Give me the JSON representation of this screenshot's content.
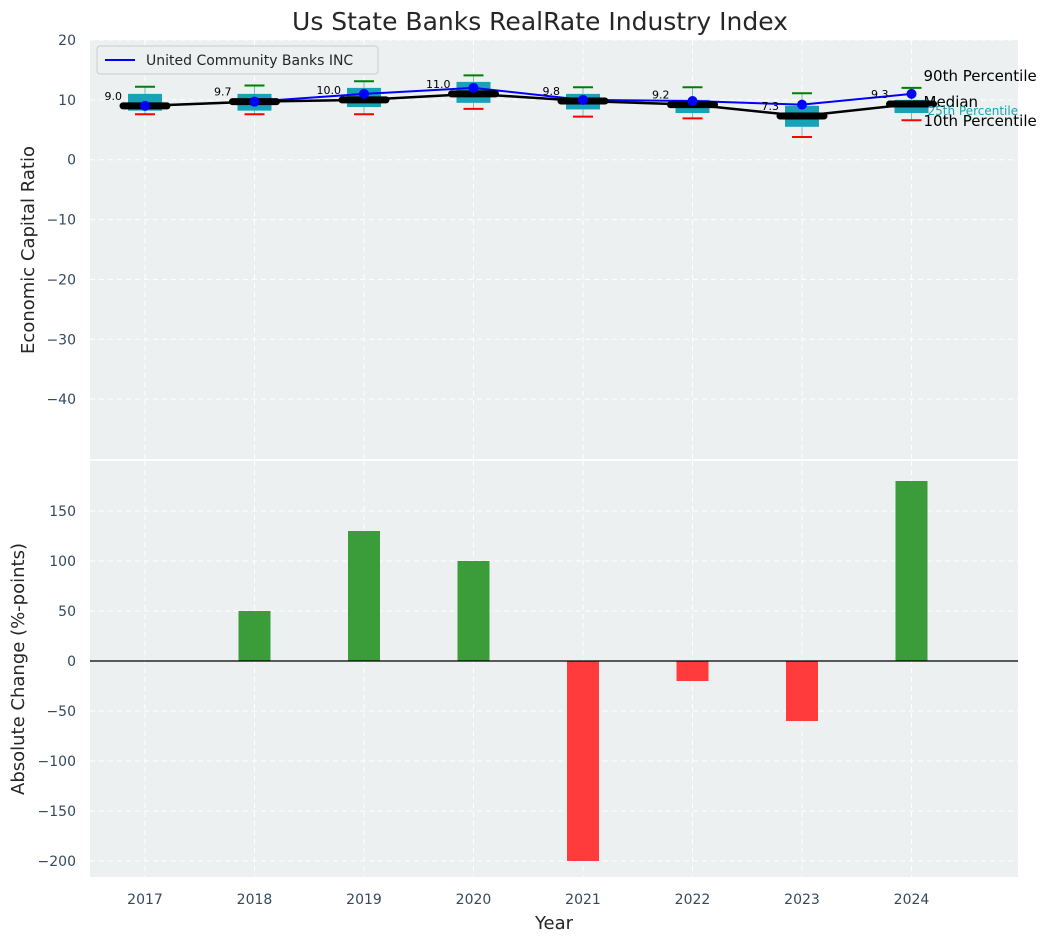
{
  "chart_data": [
    {
      "type": "box",
      "title": "Us State Banks RealRate Industry Index",
      "ylabel": "Economic Capital Ratio",
      "ylim": [
        -50,
        20
      ],
      "yticks": [
        20,
        10,
        0,
        -10,
        -20,
        -30,
        -40
      ],
      "categories": [
        "2017",
        "2018",
        "2019",
        "2020",
        "2021",
        "2022",
        "2023",
        "2024"
      ],
      "percentiles": {
        "p10": [
          7.6,
          7.6,
          7.6,
          8.5,
          7.2,
          6.9,
          3.8,
          6.6
        ],
        "p25": [
          8.2,
          8.2,
          8.8,
          9.5,
          8.4,
          7.8,
          5.5,
          7.8
        ],
        "median": [
          9.0,
          9.7,
          10.0,
          11.0,
          9.8,
          9.2,
          7.3,
          9.3
        ],
        "p75": [
          11.0,
          11.0,
          12.0,
          13.0,
          11.0,
          10.0,
          9.0,
          10.0
        ],
        "p90": [
          12.2,
          12.4,
          13.1,
          14.1,
          12.1,
          12.1,
          11.1,
          12.0
        ]
      },
      "median_labels": [
        "9.0",
        "9.7",
        "10.0",
        "11.0",
        "9.8",
        "9.2",
        "7.3",
        "9.3"
      ],
      "company": {
        "name": "United Community Banks INC",
        "values": [
          9.0,
          9.7,
          11.0,
          12.0,
          10.0,
          9.8,
          9.2,
          11.0
        ]
      },
      "annotations": {
        "p90": "90th Percentile",
        "median": "Median",
        "p25": "25th Percentile",
        "p10": "10th Percentile"
      },
      "legend_position": "top-left",
      "colors": {
        "box": "#17a2b8",
        "company": "#0000ff",
        "median": "#000000",
        "p90_whisker": "#008000",
        "p10_whisker": "#ff0000"
      }
    },
    {
      "type": "bar",
      "xlabel": "Year",
      "ylabel": "Absolute Change (%-points)",
      "ylim": [
        -216,
        200
      ],
      "yticks": [
        150,
        100,
        50,
        0,
        -50,
        -100,
        -150,
        -200
      ],
      "categories": [
        "2017",
        "2018",
        "2019",
        "2020",
        "2021",
        "2022",
        "2023",
        "2024"
      ],
      "values": [
        0,
        50,
        130,
        100,
        -200,
        -20,
        -60,
        180
      ],
      "colors": {
        "positive": "#3a9d3a",
        "negative": "#ff3b3b"
      }
    }
  ]
}
